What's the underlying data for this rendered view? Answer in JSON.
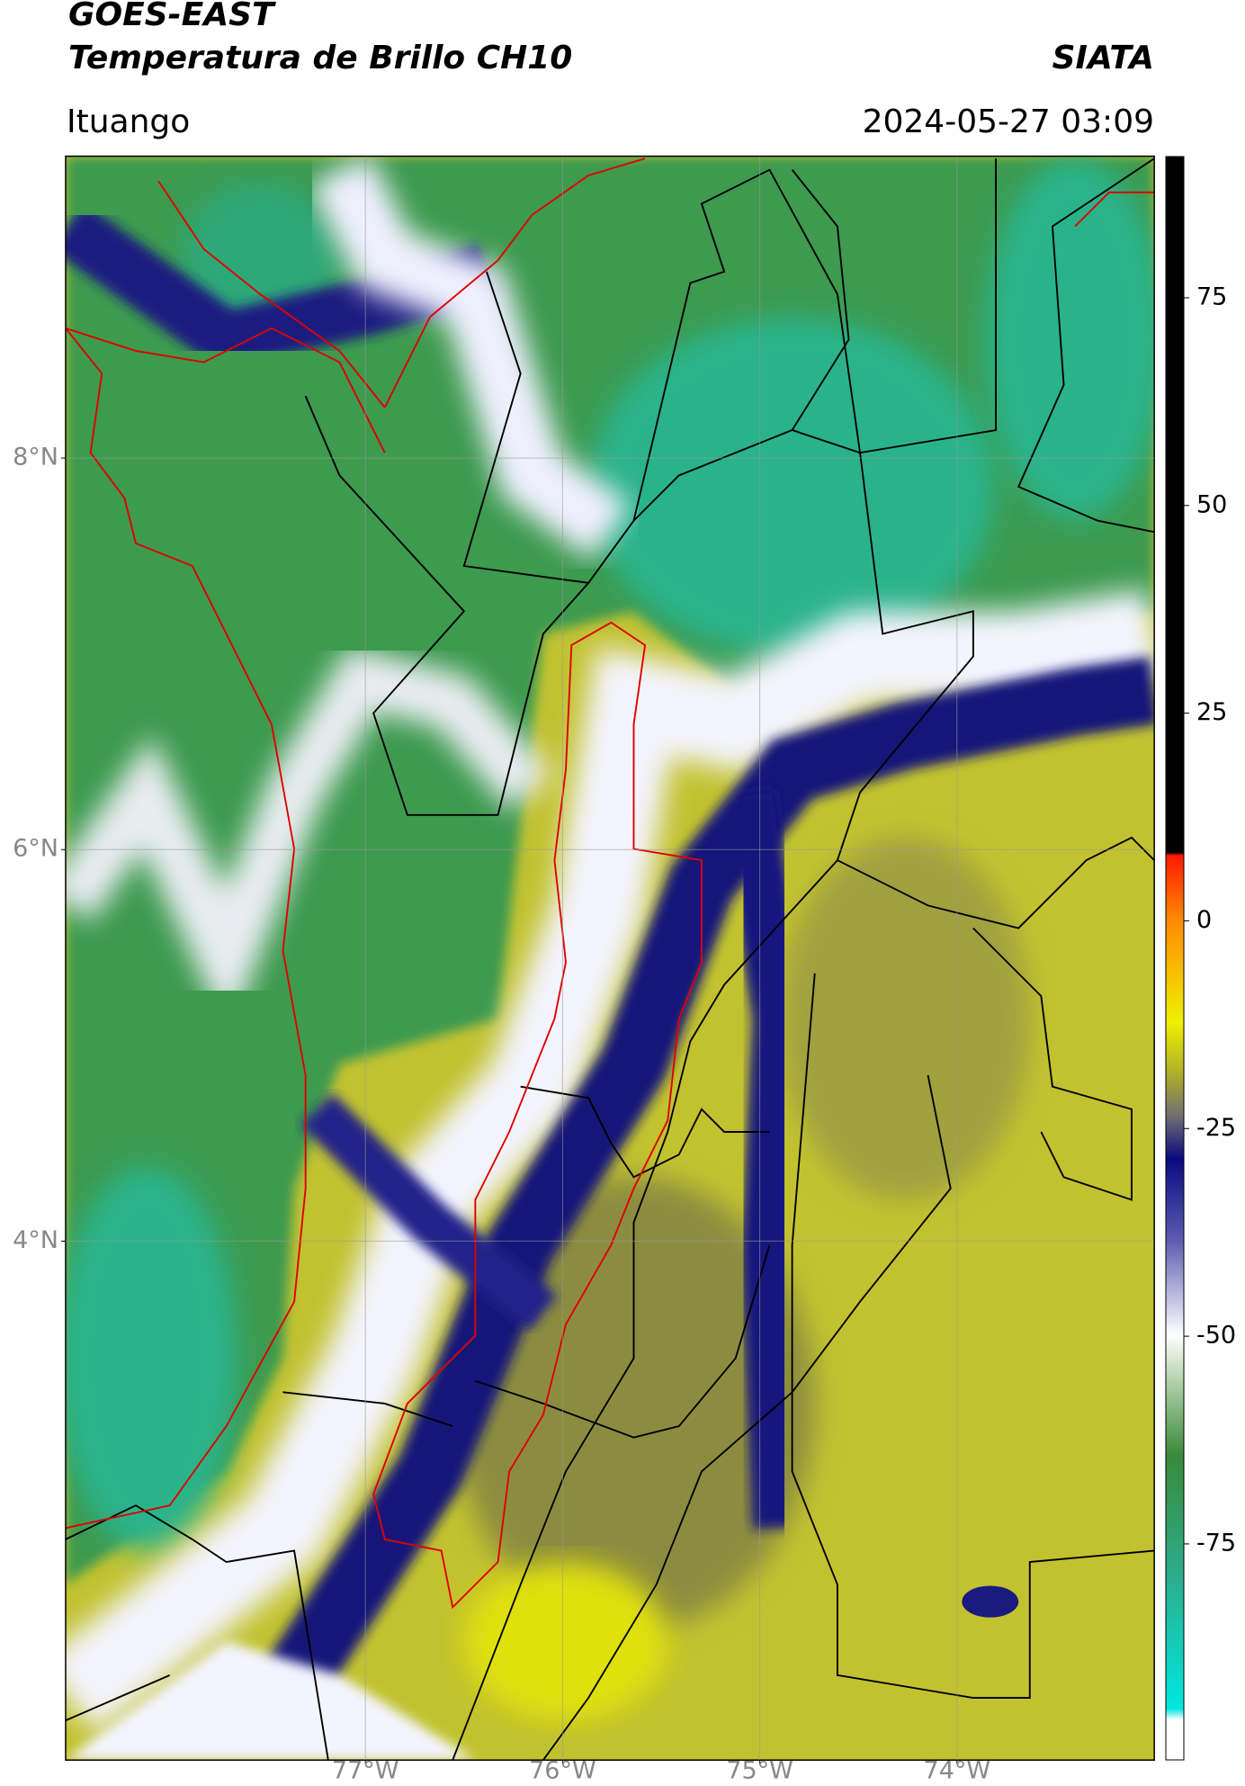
{
  "chart_data": {
    "type": "map",
    "title": "GOES-EAST",
    "subtitle": "Temperatura de Brillo CH10",
    "source": "SIATA",
    "location": "Ituango",
    "timestamp": "2024-05-27 03:09",
    "xlim": [
      -78.52,
      -73.0
    ],
    "ylim": [
      1.35,
      9.54
    ],
    "xticks": [
      {
        "value": -77,
        "label": "77°W"
      },
      {
        "value": -76,
        "label": "76°W"
      },
      {
        "value": -75,
        "label": "75°W"
      },
      {
        "value": -74,
        "label": "74°W"
      }
    ],
    "yticks": [
      {
        "value": 8,
        "label": "8°N"
      },
      {
        "value": 6,
        "label": "6°N"
      },
      {
        "value": 4,
        "label": "4°N"
      }
    ],
    "grid": true,
    "clim": [
      -101,
      92
    ],
    "cticks": [
      75,
      50,
      25,
      0,
      -25,
      -50,
      -75
    ]
  }
}
